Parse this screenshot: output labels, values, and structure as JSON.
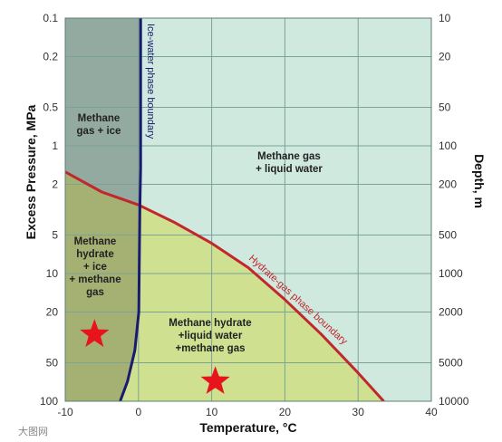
{
  "chart_data": {
    "type": "phase-diagram",
    "xlabel": "Temperature, °C",
    "ylabel": "Excess Pressure, MPa",
    "y2label": "Depth, m",
    "xlim": [
      -10,
      40
    ],
    "ylim": [
      0.1,
      100
    ],
    "yscale": "log",
    "grid": true,
    "x_ticks": [
      "-10",
      "0",
      "10",
      "20",
      "30",
      "40"
    ],
    "x_tick_values": [
      -10,
      0,
      10,
      20,
      30,
      40
    ],
    "y_ticks": [
      "0.1",
      "0.2",
      "0.5",
      "1",
      "2",
      "5",
      "10",
      "20",
      "50",
      "100"
    ],
    "y_tick_values": [
      0.1,
      0.2,
      0.5,
      1,
      2,
      5,
      10,
      20,
      50,
      100
    ],
    "y2_ticks": [
      "10",
      "20",
      "50",
      "100",
      "200",
      "500",
      "1000",
      "2000",
      "5000",
      "10000"
    ],
    "ice_water_boundary": {
      "label": "Ice-water phase boundary",
      "points": [
        [
          0.3,
          0.1
        ],
        [
          0.3,
          1.5
        ],
        [
          0.2,
          3
        ],
        [
          0.1,
          10
        ],
        [
          0.05,
          20
        ],
        [
          -0.5,
          40
        ],
        [
          -1.5,
          70
        ],
        [
          -2.5,
          100
        ]
      ]
    },
    "hydrate_gas_boundary": {
      "label": "Hydrate-gas phase boundary",
      "points": [
        [
          -10,
          1.6
        ],
        [
          -5,
          2.3
        ],
        [
          0,
          2.9
        ],
        [
          5,
          4.0
        ],
        [
          10,
          5.8
        ],
        [
          15,
          9.0
        ],
        [
          20,
          16
        ],
        [
          25,
          30
        ],
        [
          30,
          60
        ],
        [
          33.5,
          100
        ]
      ]
    },
    "regions": [
      {
        "label_lines": [
          "Methane",
          "gas + ice"
        ]
      },
      {
        "label_lines": [
          "Methane gas",
          "+ liquid water"
        ]
      },
      {
        "label_lines": [
          "Methane",
          "hydrate",
          "+ ice",
          "+ methane",
          "gas"
        ]
      },
      {
        "label_lines": [
          "Methane hydrate",
          "+liquid water",
          "+methane gas"
        ]
      }
    ],
    "markers": [
      {
        "shape": "star",
        "x": -6,
        "y": 30
      },
      {
        "shape": "star",
        "x": 10.5,
        "y": 70
      }
    ],
    "colors": {
      "gas_water": "#cfe9df",
      "gas_ice": "#92aaa0",
      "hydrate_water": "#cfe190",
      "hydrate_ice": "#a5b073",
      "hydrate_boundary": "#c1272d",
      "ice_boundary": "#1a1a6e",
      "grid": "#7aa39a",
      "marker": "#e8141b"
    }
  },
  "watermark": "大图网"
}
